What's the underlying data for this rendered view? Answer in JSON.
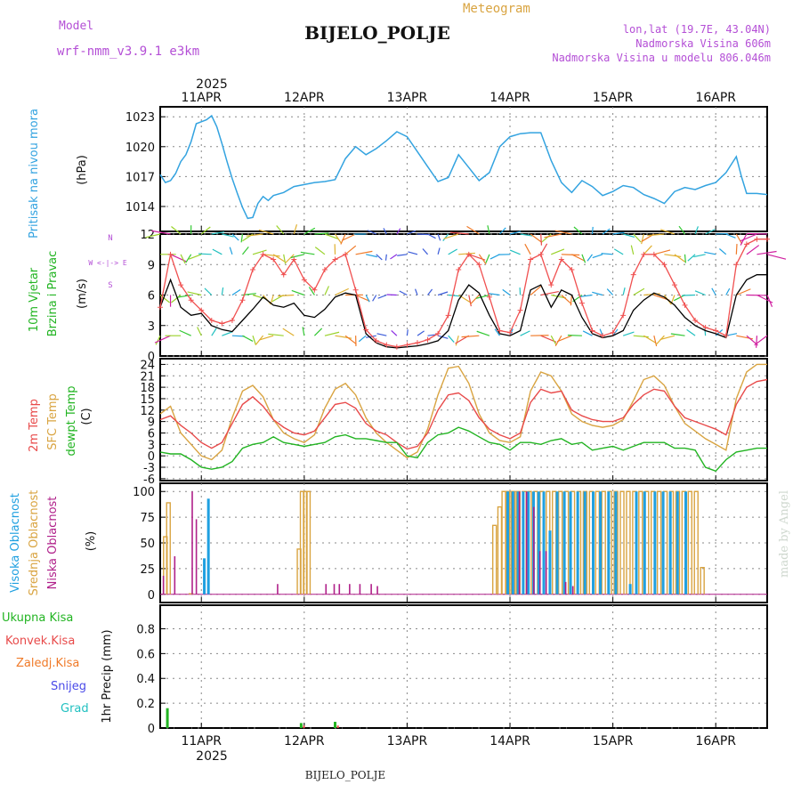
{
  "header": {
    "model_label": "Model",
    "model_name": "wrf-nmm_v3.9.1  e3km",
    "meteogram_label": "Meteogram",
    "station": "BIJELO_POLJE",
    "lonlat": "lon,lat (19.7E, 43.04N)",
    "altitude": "Nadmorska Visina 606m",
    "model_altitude": "Nadmorska Visina u modelu 806.046m",
    "footer_station": "BIJELO_POLJE",
    "watermark": "made by Angel"
  },
  "colors": {
    "pressure": "#33a3e0",
    "temp2m": "#e84a4a",
    "sfc": "#d9a441",
    "dewpt": "#22b422",
    "high_cloud": "#1fa0e0",
    "mid_cloud": "#d9a441",
    "low_cloud": "#b0208a",
    "wind_gust": "#f05050",
    "wind_speed": "#000000",
    "purple_text": "#b44fd6",
    "total_precip": "#22b422",
    "conv_precip": "#e84a4a",
    "frz_precip": "#f07a28",
    "snow": "#4a4ae8",
    "hail": "#20c0c0"
  },
  "chart_data": {
    "type": "line",
    "x_start": 10.6,
    "x_end": 16.5,
    "date_ticks": {
      "year": "2025",
      "values": [
        11,
        12,
        13,
        14,
        15,
        16
      ],
      "labels": [
        "11APR",
        "12APR",
        "13APR",
        "14APR",
        "15APR",
        "16APR"
      ]
    },
    "pressure": {
      "label": "Pritisak na nivou mora",
      "unit": "(hPa)",
      "ylim": [
        1011.5,
        1024
      ],
      "yticks": [
        1014,
        1017,
        1020,
        1023
      ],
      "x": [
        10.6,
        10.65,
        10.7,
        10.75,
        10.8,
        10.85,
        10.9,
        10.95,
        11.0,
        11.05,
        11.1,
        11.15,
        11.2,
        11.25,
        11.3,
        11.35,
        11.4,
        11.45,
        11.5,
        11.55,
        11.6,
        11.65,
        11.7,
        11.8,
        11.9,
        12.0,
        12.1,
        12.2,
        12.3,
        12.4,
        12.5,
        12.6,
        12.7,
        12.8,
        12.9,
        13.0,
        13.1,
        13.2,
        13.3,
        13.4,
        13.5,
        13.6,
        13.7,
        13.8,
        13.9,
        14.0,
        14.1,
        14.2,
        14.3,
        14.4,
        14.5,
        14.6,
        14.7,
        14.8,
        14.9,
        15.0,
        15.1,
        15.2,
        15.3,
        15.4,
        15.5,
        15.6,
        15.7,
        15.8,
        15.9,
        16.0,
        16.1,
        16.15,
        16.2,
        16.25,
        16.3,
        16.4,
        16.5
      ],
      "values": [
        1017.2,
        1016.4,
        1016.6,
        1017.3,
        1018.5,
        1019.2,
        1020.5,
        1022.3,
        1022.5,
        1022.7,
        1023.1,
        1022.0,
        1020.3,
        1018.5,
        1016.8,
        1015.3,
        1013.9,
        1012.8,
        1012.9,
        1014.3,
        1015.0,
        1014.6,
        1015.1,
        1015.4,
        1016.0,
        1016.2,
        1016.4,
        1016.5,
        1016.7,
        1018.8,
        1020.0,
        1019.2,
        1019.8,
        1020.6,
        1021.5,
        1021.0,
        1019.5,
        1018.0,
        1016.5,
        1016.9,
        1019.2,
        1017.9,
        1016.6,
        1017.4,
        1020.0,
        1021.0,
        1021.3,
        1021.4,
        1021.4,
        1018.6,
        1016.4,
        1015.4,
        1016.6,
        1016.0,
        1015.1,
        1015.5,
        1016.1,
        1015.9,
        1015.2,
        1014.8,
        1014.3,
        1015.5,
        1015.9,
        1015.7,
        1016.1,
        1016.4,
        1017.4,
        1018.2,
        1019.0,
        1017.0,
        1015.3,
        1015.3,
        1015.2
      ]
    },
    "wind": {
      "label_1": "10m Vjetar",
      "label_2": "Brzina i Pravac",
      "unit": "(m/s)",
      "compass": "W  <-|->  E",
      "compass_s": "S",
      "compass_n": "N",
      "ylim": [
        0,
        12
      ],
      "yticks": [
        0,
        3,
        6,
        9,
        12
      ],
      "x": [
        10.6,
        10.7,
        10.8,
        10.9,
        11.0,
        11.1,
        11.2,
        11.3,
        11.4,
        11.5,
        11.6,
        11.7,
        11.8,
        11.9,
        12.0,
        12.1,
        12.2,
        12.3,
        12.4,
        12.5,
        12.6,
        12.7,
        12.8,
        12.9,
        13.0,
        13.1,
        13.2,
        13.3,
        13.4,
        13.5,
        13.6,
        13.7,
        13.8,
        13.9,
        14.0,
        14.1,
        14.2,
        14.3,
        14.4,
        14.5,
        14.6,
        14.7,
        14.8,
        14.9,
        15.0,
        15.1,
        15.2,
        15.3,
        15.4,
        15.5,
        15.6,
        15.7,
        15.8,
        15.9,
        16.0,
        16.1,
        16.2,
        16.3,
        16.4,
        16.5
      ],
      "speed": [
        4.8,
        7.5,
        4.8,
        4.0,
        4.2,
        3.0,
        2.6,
        2.4,
        3.5,
        4.6,
        5.8,
        5.0,
        4.8,
        5.2,
        4.0,
        3.8,
        4.6,
        5.8,
        6.2,
        6.0,
        2.2,
        1.3,
        0.9,
        0.8,
        0.9,
        1.0,
        1.2,
        1.5,
        2.5,
        5.5,
        7.0,
        6.2,
        4.0,
        2.2,
        2.0,
        2.5,
        6.5,
        7.0,
        4.8,
        6.5,
        6.0,
        3.8,
        2.2,
        1.8,
        2.0,
        2.5,
        4.5,
        5.5,
        6.2,
        5.8,
        5.0,
        3.8,
        3.0,
        2.5,
        2.2,
        1.8,
        6.0,
        7.5,
        8.0,
        8.0
      ],
      "gust": [
        4.8,
        10.0,
        7.0,
        5.5,
        4.5,
        3.5,
        3.2,
        3.5,
        5.5,
        8.5,
        10.0,
        9.5,
        8.0,
        9.5,
        7.5,
        6.5,
        8.5,
        9.5,
        10.0,
        6.5,
        2.6,
        1.5,
        1.1,
        0.9,
        1.1,
        1.3,
        1.6,
        2.2,
        4.0,
        8.5,
        10.0,
        9.0,
        5.8,
        2.5,
        2.3,
        4.5,
        9.5,
        10.0,
        7.0,
        9.5,
        8.5,
        5.2,
        2.5,
        2.0,
        2.3,
        4.0,
        8.0,
        10.0,
        10.0,
        9.0,
        7.0,
        5.0,
        3.5,
        2.8,
        2.5,
        2.0,
        9.0,
        11.0,
        11.5,
        11.5
      ]
    },
    "temperature": {
      "label_1": "2m Temp",
      "label_2": "SFC Temp",
      "label_3": "dewpt Temp",
      "unit": "(C)",
      "ylim": [
        -6.5,
        25.5
      ],
      "yticks": [
        -6,
        -3,
        0,
        3,
        6,
        9,
        12,
        15,
        18,
        21,
        24
      ],
      "x": [
        10.6,
        10.7,
        10.8,
        10.9,
        11.0,
        11.1,
        11.2,
        11.3,
        11.4,
        11.5,
        11.6,
        11.7,
        11.8,
        11.9,
        12.0,
        12.1,
        12.2,
        12.3,
        12.4,
        12.5,
        12.6,
        12.7,
        12.8,
        12.9,
        13.0,
        13.1,
        13.2,
        13.3,
        13.4,
        13.5,
        13.6,
        13.7,
        13.8,
        13.9,
        14.0,
        14.1,
        14.2,
        14.3,
        14.4,
        14.5,
        14.6,
        14.7,
        14.8,
        14.9,
        15.0,
        15.1,
        15.2,
        15.3,
        15.4,
        15.5,
        15.6,
        15.7,
        15.8,
        15.9,
        16.0,
        16.1,
        16.2,
        16.3,
        16.4,
        16.5
      ],
      "temp2m": [
        9.5,
        10.5,
        8.0,
        6.0,
        3.5,
        2.0,
        3.5,
        8.5,
        13.5,
        15.5,
        13.0,
        9.5,
        7.5,
        6.0,
        5.5,
        6.5,
        10.0,
        13.5,
        14.0,
        12.5,
        8.5,
        6.5,
        5.5,
        3.5,
        1.8,
        2.5,
        6.0,
        12.0,
        16.0,
        16.5,
        14.5,
        10.0,
        7.0,
        5.5,
        4.5,
        6.0,
        14.0,
        17.5,
        16.5,
        17.0,
        12.0,
        10.5,
        9.5,
        9.0,
        9.0,
        10.0,
        13.5,
        16.0,
        17.5,
        17.0,
        13.0,
        10.0,
        9.0,
        8.0,
        7.0,
        5.5,
        13.5,
        18.0,
        19.5,
        20.0
      ],
      "sfc": [
        11.0,
        13.0,
        6.0,
        3.0,
        0.0,
        -1.0,
        1.5,
        10.0,
        17.0,
        18.5,
        15.5,
        9.5,
        6.0,
        4.5,
        3.5,
        5.5,
        12.5,
        17.5,
        19.0,
        16.0,
        10.0,
        6.0,
        3.5,
        1.5,
        -0.5,
        1.0,
        7.0,
        16.0,
        23.0,
        23.5,
        19.0,
        11.0,
        6.0,
        4.0,
        3.5,
        5.0,
        17.0,
        22.0,
        21.0,
        17.0,
        11.0,
        9.0,
        8.0,
        7.5,
        8.0,
        9.5,
        14.5,
        20.0,
        21.0,
        18.5,
        13.0,
        8.5,
        6.5,
        4.5,
        3.0,
        1.5,
        15.0,
        22.0,
        24.0,
        24.0
      ],
      "dewpt": [
        1.0,
        0.5,
        0.5,
        -1.0,
        -3.0,
        -3.5,
        -3.0,
        -1.5,
        2.0,
        3.0,
        3.5,
        5.0,
        3.5,
        3.0,
        2.5,
        3.0,
        3.5,
        5.0,
        5.5,
        4.5,
        4.5,
        4.0,
        3.5,
        3.5,
        0.0,
        -0.5,
        3.5,
        5.5,
        6.0,
        7.5,
        6.5,
        5.0,
        3.5,
        3.0,
        1.5,
        3.5,
        3.5,
        3.0,
        4.0,
        4.5,
        3.0,
        3.5,
        1.5,
        2.0,
        2.5,
        1.5,
        2.5,
        3.5,
        3.5,
        3.5,
        2.0,
        2.0,
        1.5,
        -3.0,
        -4.0,
        -1.0,
        1.0,
        1.5,
        2.0,
        2.0
      ]
    },
    "clouds": {
      "label_high": "Visoka Oblacnost",
      "label_mid": "Srednja Oblacnost",
      "label_low": "Niska Oblacnost",
      "unit": "(%)",
      "ylim": [
        0,
        100
      ],
      "yticks": [
        0,
        25,
        50,
        75,
        100
      ],
      "high_bars": [
        [
          11.02,
          35
        ],
        [
          11.06,
          93
        ],
        [
          13.97,
          100
        ],
        [
          14.02,
          100
        ],
        [
          14.07,
          100
        ],
        [
          14.12,
          100
        ],
        [
          14.17,
          100
        ],
        [
          14.22,
          100
        ],
        [
          14.27,
          100
        ],
        [
          14.32,
          100
        ],
        [
          14.38,
          62
        ],
        [
          14.45,
          100
        ],
        [
          14.52,
          100
        ],
        [
          14.58,
          100
        ],
        [
          14.65,
          100
        ],
        [
          14.72,
          100
        ],
        [
          14.8,
          100
        ],
        [
          14.87,
          100
        ],
        [
          14.95,
          100
        ],
        [
          15.02,
          100
        ],
        [
          15.16,
          10
        ],
        [
          15.22,
          100
        ],
        [
          15.3,
          100
        ],
        [
          15.4,
          100
        ],
        [
          15.48,
          100
        ],
        [
          15.55,
          100
        ],
        [
          15.62,
          100
        ],
        [
          15.7,
          100
        ]
      ],
      "mid_bars": [
        [
          10.65,
          56
        ],
        [
          10.68,
          89
        ],
        [
          10.9,
          0.5
        ],
        [
          11.95,
          44
        ],
        [
          11.98,
          100
        ],
        [
          12.01,
          100
        ],
        [
          12.04,
          100
        ],
        [
          13.85,
          67
        ],
        [
          13.9,
          85
        ],
        [
          13.94,
          100
        ],
        [
          13.98,
          100
        ],
        [
          14.03,
          100
        ],
        [
          14.08,
          100
        ],
        [
          14.14,
          100
        ],
        [
          14.19,
          100
        ],
        [
          14.25,
          100
        ],
        [
          14.31,
          100
        ],
        [
          14.37,
          100
        ],
        [
          14.43,
          100
        ],
        [
          14.49,
          100
        ],
        [
          14.55,
          100
        ],
        [
          14.61,
          100
        ],
        [
          14.67,
          100
        ],
        [
          14.73,
          100
        ],
        [
          14.79,
          100
        ],
        [
          14.85,
          100
        ],
        [
          14.91,
          100
        ],
        [
          14.97,
          100
        ],
        [
          15.03,
          100
        ],
        [
          15.09,
          100
        ],
        [
          15.15,
          100
        ],
        [
          15.21,
          100
        ],
        [
          15.27,
          100
        ],
        [
          15.33,
          100
        ],
        [
          15.39,
          100
        ],
        [
          15.45,
          100
        ],
        [
          15.51,
          100
        ],
        [
          15.57,
          100
        ],
        [
          15.63,
          100
        ],
        [
          15.69,
          100
        ],
        [
          15.75,
          100
        ],
        [
          15.81,
          100
        ],
        [
          15.87,
          26
        ]
      ],
      "low_bars": [
        [
          10.64,
          18
        ],
        [
          10.75,
          37
        ],
        [
          10.92,
          100
        ],
        [
          10.96,
          73
        ],
        [
          11.75,
          10
        ],
        [
          12.22,
          10
        ],
        [
          12.3,
          10
        ],
        [
          12.35,
          10
        ],
        [
          12.45,
          10
        ],
        [
          12.55,
          10
        ],
        [
          12.66,
          10
        ],
        [
          12.72,
          8
        ],
        [
          14.1,
          100
        ],
        [
          14.17,
          100
        ],
        [
          14.24,
          85
        ],
        [
          14.3,
          42
        ],
        [
          14.36,
          42
        ],
        [
          14.55,
          12
        ],
        [
          14.62,
          8
        ]
      ]
    },
    "precip": {
      "label_total": "Ukupna  Kisa",
      "label_conv": "Konvek.Kisa",
      "label_frz": "Zaledj.Kisa",
      "label_snow": "Snijeg",
      "label_hail": "Grad",
      "unit_label": "1hr Precip (mm)",
      "ylim": [
        0,
        0.99
      ],
      "yticks": [
        0,
        0.2,
        0.4,
        0.6,
        0.8
      ],
      "ytick_labels": [
        "0",
        "0.2",
        "0.4",
        "0.6",
        "0.8"
      ],
      "total_bars": [
        [
          10.67,
          0.16
        ],
        [
          11.97,
          0.04
        ],
        [
          12.3,
          0.05
        ]
      ],
      "conv_bars": [
        [
          11.98,
          0.02
        ],
        [
          12.31,
          0.02
        ]
      ]
    }
  }
}
